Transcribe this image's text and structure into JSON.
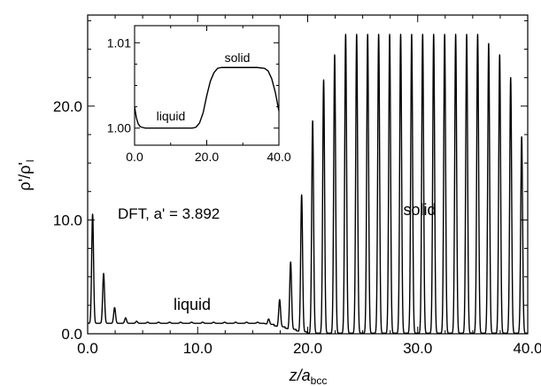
{
  "chart_data": [
    {
      "type": "line",
      "title": "",
      "xlabel": {
        "main": "z/a",
        "sub": "bcc"
      },
      "ylabel": {
        "main": "ρ'/ρ'",
        "sub": "l"
      },
      "xlim": [
        0,
        40
      ],
      "ylim": [
        0,
        28
      ],
      "xticks": [
        0,
        10,
        20,
        30,
        40
      ],
      "xtick_labels": [
        "0.0",
        "10.0",
        "20.0",
        "30.0",
        "40.0"
      ],
      "yticks": [
        0,
        10,
        20
      ],
      "ytick_labels": [
        "0.0",
        "10.0",
        "20.0"
      ],
      "grid": false,
      "annotations": [
        {
          "text": "DFT, a' = 3.892"
        },
        {
          "text": "solid"
        },
        {
          "text": "liquid"
        }
      ],
      "profile": {
        "liquid_peaks": [
          {
            "z": 0.45,
            "peak": 10.5
          },
          {
            "z": 1.45,
            "peak": 5.3
          },
          {
            "z": 2.45,
            "peak": 2.3
          },
          {
            "z": 3.45,
            "peak": 1.4
          },
          {
            "z": 4.45,
            "peak": 1.1
          },
          {
            "z": 5.45,
            "peak": 1.02
          }
        ],
        "liquid_baseline": 1.0,
        "interface_peaks": [
          {
            "z": 15.45,
            "peak": 1.02
          },
          {
            "z": 16.45,
            "peak": 1.3
          },
          {
            "z": 17.45,
            "peak": 3.0
          },
          {
            "z": 18.45,
            "peak": 6.3
          },
          {
            "z": 19.45,
            "peak": 12.2
          },
          {
            "z": 20.45,
            "peak": 18.7
          },
          {
            "z": 21.45,
            "peak": 22.3
          },
          {
            "z": 22.45,
            "peak": 24.5
          }
        ],
        "bulk_solid_peak": 26.3,
        "bulk_solid_range": [
          23.45,
          35.45
        ],
        "right_edge_peaks": [
          {
            "z": 36.45,
            "peak": 25.5
          },
          {
            "z": 37.45,
            "peak": 24.5
          },
          {
            "z": 38.45,
            "peak": 22.5
          },
          {
            "z": 39.45,
            "peak": 17.3
          }
        ]
      }
    },
    {
      "type": "line",
      "title": "",
      "xlim": [
        0,
        40
      ],
      "ylim": [
        0.998,
        1.012
      ],
      "xticks": [
        0,
        20,
        40
      ],
      "xtick_labels": [
        "0.0",
        "20.0",
        "40.0"
      ],
      "yticks": [
        1.0,
        1.01
      ],
      "ytick_labels": [
        "1.00",
        "1.01"
      ],
      "annotations": [
        {
          "text": "solid"
        },
        {
          "text": "liquid"
        }
      ],
      "series": [
        {
          "x": [
            0,
            0.5,
            1,
            1.5,
            2,
            3,
            4,
            6,
            8,
            10,
            12,
            14,
            16,
            17,
            18,
            19,
            20,
            21,
            22,
            23,
            24,
            26,
            28,
            30,
            32,
            34,
            36,
            37,
            38,
            39,
            40
          ],
          "y": [
            1.0025,
            1.0012,
            1.0005,
            1.0002,
            1.0001,
            1.0,
            1.0,
            1.0,
            1.0,
            1.0,
            1.0,
            1.0,
            1.0,
            1.0001,
            1.0006,
            1.0018,
            1.0038,
            1.0055,
            1.0065,
            1.007,
            1.0071,
            1.0071,
            1.0071,
            1.0071,
            1.0071,
            1.0071,
            1.007,
            1.0067,
            1.0058,
            1.0042,
            1.002
          ]
        }
      ]
    }
  ]
}
